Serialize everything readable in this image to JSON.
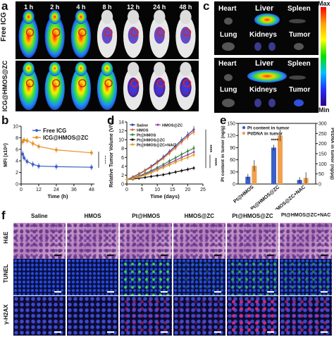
{
  "panels": {
    "a": {
      "label": "a",
      "times": [
        "1 h",
        "2 h",
        "4 h",
        "8 h",
        "12 h",
        "24 h",
        "48 h"
      ],
      "rows": [
        "Free ICG",
        "ICG@HMOS@ZC"
      ]
    },
    "b": {
      "label": "b"
    },
    "c": {
      "label": "c",
      "organs_row1": [
        "Heart",
        "Liver",
        "Spleen"
      ],
      "organs_row2": [
        "Lung",
        "Kidneys",
        "Tumor"
      ],
      "scale_max": "Max",
      "scale_min": "Min"
    },
    "d": {
      "label": "d"
    },
    "e": {
      "label": "e"
    },
    "f": {
      "label": "f",
      "columns": [
        "Saline",
        "HMOS",
        "Pt@HMOS",
        "HMOS@ZC",
        "Pt@HMOS@ZC",
        "Pt@HMOS@ZC+NAC"
      ],
      "rows": [
        "H&E",
        "TUNEL",
        "γ-H2AX"
      ]
    }
  },
  "chart_data": [
    {
      "type": "line",
      "id": "b",
      "xlabel": "Time (h)",
      "ylabel": "MFI (x10⁸)",
      "xlim": [
        0,
        50
      ],
      "ylim": [
        0,
        10
      ],
      "xticks": [
        0,
        12,
        24,
        36,
        48
      ],
      "yticks": [
        0,
        2,
        4,
        6,
        8,
        10
      ],
      "x": [
        1,
        2,
        4,
        8,
        12,
        24,
        48
      ],
      "series": [
        {
          "name": "Free ICG",
          "color": "#3a5fc8",
          "values": [
            5.2,
            4.5,
            3.9,
            3.4,
            3.1,
            3.0,
            2.9
          ]
        },
        {
          "name": "ICG@HMOS@ZC",
          "color": "#e8902a",
          "values": [
            7.3,
            7.6,
            7.5,
            7.0,
            6.5,
            5.9,
            5.4
          ]
        }
      ],
      "significance": "****",
      "legend": "top"
    },
    {
      "type": "line",
      "id": "d",
      "xlabel": "Time (days)",
      "ylabel": "Relative Tumor Volume (V/V₀)",
      "xlim": [
        0,
        25
      ],
      "ylim": [
        0,
        14
      ],
      "xticks": [
        0,
        5,
        10,
        15,
        20,
        25
      ],
      "yticks": [
        0,
        2,
        4,
        6,
        8,
        10,
        12,
        14
      ],
      "x": [
        0,
        2,
        4,
        6,
        8,
        10,
        12,
        14,
        16,
        18,
        20,
        22
      ],
      "series": [
        {
          "name": "Saline",
          "color": "#2b3fa8",
          "values": [
            1.0,
            1.6,
            2.3,
            3.1,
            4.0,
            5.0,
            6.1,
            7.3,
            8.6,
            9.9,
            11.1,
            12.3
          ]
        },
        {
          "name": "HMOS",
          "color": "#d46a2a",
          "values": [
            1.0,
            1.5,
            2.2,
            3.0,
            3.8,
            4.8,
            5.8,
            7.0,
            8.2,
            9.5,
            10.7,
            11.8
          ]
        },
        {
          "name": "Pt@HMOS",
          "color": "#2e8b3a",
          "values": [
            1.0,
            1.3,
            1.8,
            2.4,
            3.0,
            3.7,
            4.4,
            5.2,
            5.9,
            6.7,
            7.4,
            8.1
          ]
        },
        {
          "name": "HMOS@ZC",
          "color": "#9b3fb0",
          "values": [
            1.0,
            1.3,
            1.7,
            2.2,
            2.8,
            3.4,
            4.0,
            4.7,
            5.3,
            6.0,
            6.6,
            7.2
          ]
        },
        {
          "name": "Pt@HMOS@ZC",
          "color": "#111111",
          "values": [
            1.0,
            1.1,
            1.3,
            1.5,
            1.7,
            1.9,
            2.1,
            2.4,
            2.7,
            3.0,
            3.3,
            3.6
          ]
        },
        {
          "name": "Pt@HMOS@ZC+NAC",
          "color": "#e0a020",
          "values": [
            1.0,
            1.2,
            1.6,
            2.0,
            2.5,
            3.1,
            3.7,
            4.3,
            4.9,
            5.5,
            6.0,
            6.6
          ]
        }
      ],
      "significance": [
        "****",
        "****"
      ],
      "legend": "top-left"
    },
    {
      "type": "bar",
      "id": "e",
      "categories": [
        "Pt@HMOS",
        "Pt@HMOS@ZC",
        "Pt@HMOS@ZC+NAC"
      ],
      "ylabel": "Pt content in tumor (ng/g)",
      "y2label": "Pt/DNA in tumor (ng/μg)",
      "ylim": [
        0,
        150
      ],
      "yticks": [
        0,
        30,
        60,
        90,
        120,
        150
      ],
      "y2lim": [
        0,
        300
      ],
      "y2ticks": [
        0,
        50,
        100,
        150,
        200,
        250,
        300
      ],
      "series": [
        {
          "name": "Pt content in tumor",
          "color": "#3a5fc8",
          "values": [
            18,
            90,
            10
          ]
        },
        {
          "name": "Pt/DNA in tumor",
          "color": "#f0a050",
          "values": [
            90,
            240,
            30
          ]
        }
      ],
      "significance": "****",
      "legend": "top"
    }
  ]
}
